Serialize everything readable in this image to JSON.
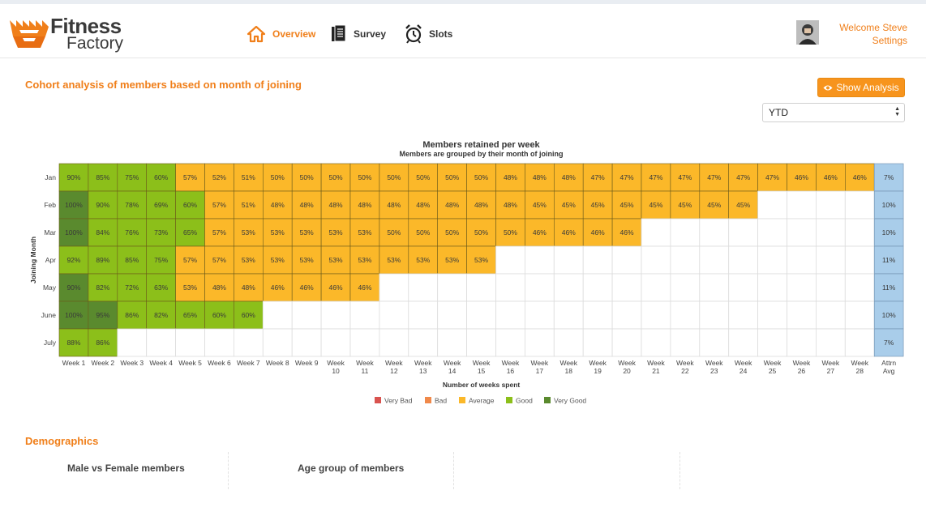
{
  "brand": {
    "line1": "Fitness",
    "line2": "Factory"
  },
  "nav": [
    {
      "label": "Overview",
      "icon": "home-icon"
    },
    {
      "label": "Survey",
      "icon": "document-icon"
    },
    {
      "label": "Slots",
      "icon": "alarm-clock-icon"
    }
  ],
  "user": {
    "welcome": "Welcome Steve",
    "settings": "Settings"
  },
  "cohort": {
    "title": "Cohort analysis of members based on month of joining",
    "show_button": "Show Analysis",
    "period_select": "YTD"
  },
  "colors": {
    "very_bad": "#d9534f",
    "bad": "#f0894a",
    "average": "#fbb829",
    "good": "#8cbf1a",
    "very_good": "#5a8a2e",
    "avg_column": "#a9cdea",
    "accent": "#f07f1a"
  },
  "chart_data": {
    "type": "heatmap",
    "title": "Members retained per week",
    "subtitle": "Members are grouped by their month of joining",
    "xlabel": "Number of weeks spent",
    "ylabel": "Joining Month",
    "rows": [
      "Jan",
      "Feb",
      "Mar",
      "Apr",
      "May",
      "June",
      "July"
    ],
    "columns": [
      [
        "Week 1"
      ],
      [
        "Week 2"
      ],
      [
        "Week 3"
      ],
      [
        "Week 4"
      ],
      [
        "Week 5"
      ],
      [
        "Week 6"
      ],
      [
        "Week 7"
      ],
      [
        "Week 8"
      ],
      [
        "Week 9"
      ],
      [
        "Week",
        "10"
      ],
      [
        "Week",
        "11"
      ],
      [
        "Week",
        "12"
      ],
      [
        "Week",
        "13"
      ],
      [
        "Week",
        "14"
      ],
      [
        "Week",
        "15"
      ],
      [
        "Week",
        "16"
      ],
      [
        "Week",
        "17"
      ],
      [
        "Week",
        "18"
      ],
      [
        "Week",
        "19"
      ],
      [
        "Week",
        "20"
      ],
      [
        "Week",
        "21"
      ],
      [
        "Week",
        "22"
      ],
      [
        "Week",
        "23"
      ],
      [
        "Week",
        "24"
      ],
      [
        "Week",
        "25"
      ],
      [
        "Week",
        "26"
      ],
      [
        "Week",
        "27"
      ],
      [
        "Week",
        "28"
      ],
      [
        "Attrn",
        "Avg"
      ]
    ],
    "values": [
      [
        90,
        85,
        75,
        60,
        57,
        52,
        51,
        50,
        50,
        50,
        50,
        50,
        50,
        50,
        50,
        48,
        48,
        48,
        47,
        47,
        47,
        47,
        47,
        47,
        47,
        46,
        46,
        46
      ],
      [
        100,
        90,
        78,
        69,
        60,
        57,
        51,
        48,
        48,
        48,
        48,
        48,
        48,
        48,
        48,
        48,
        45,
        45,
        45,
        45,
        45,
        45,
        45,
        45
      ],
      [
        100,
        84,
        76,
        73,
        65,
        57,
        53,
        53,
        53,
        53,
        53,
        50,
        50,
        50,
        50,
        50,
        46,
        46,
        46,
        46
      ],
      [
        92,
        89,
        85,
        75,
        57,
        57,
        53,
        53,
        53,
        53,
        53,
        53,
        53,
        53,
        53
      ],
      [
        90,
        82,
        72,
        63,
        53,
        48,
        48,
        46,
        46,
        46,
        46
      ],
      [
        100,
        95,
        86,
        82,
        65,
        60,
        60
      ],
      [
        88,
        86
      ]
    ],
    "attrition_avg": [
      "7%",
      "10%",
      "10%",
      "11%",
      "11%",
      "10%",
      "7%"
    ],
    "cell_categories": [
      [
        "good",
        "good",
        "good",
        "good",
        "average",
        "average",
        "average",
        "average",
        "average",
        "average",
        "average",
        "average",
        "average",
        "average",
        "average",
        "average",
        "average",
        "average",
        "average",
        "average",
        "average",
        "average",
        "average",
        "average",
        "average",
        "average",
        "average",
        "average"
      ],
      [
        "very_good",
        "good",
        "good",
        "good",
        "good",
        "average",
        "average",
        "average",
        "average",
        "average",
        "average",
        "average",
        "average",
        "average",
        "average",
        "average",
        "average",
        "average",
        "average",
        "average",
        "average",
        "average",
        "average",
        "average"
      ],
      [
        "very_good",
        "good",
        "good",
        "good",
        "good",
        "average",
        "average",
        "average",
        "average",
        "average",
        "average",
        "average",
        "average",
        "average",
        "average",
        "average",
        "average",
        "average",
        "average",
        "average"
      ],
      [
        "good",
        "good",
        "good",
        "good",
        "average",
        "average",
        "average",
        "average",
        "average",
        "average",
        "average",
        "average",
        "average",
        "average",
        "average"
      ],
      [
        "very_good",
        "good",
        "good",
        "good",
        "average",
        "average",
        "average",
        "average",
        "average",
        "average",
        "average"
      ],
      [
        "very_good",
        "very_good",
        "good",
        "good",
        "good",
        "good",
        "good"
      ],
      [
        "good",
        "good"
      ]
    ],
    "legend": [
      {
        "label": "Very Bad",
        "color": "#d9534f"
      },
      {
        "label": "Bad",
        "color": "#f0894a"
      },
      {
        "label": "Average",
        "color": "#fbb829"
      },
      {
        "label": "Good",
        "color": "#8cbf1a"
      },
      {
        "label": "Very Good",
        "color": "#5a8a2e"
      }
    ],
    "legend_position": "bottom-center"
  },
  "demographics": {
    "title": "Demographics",
    "panels": [
      "Male vs Female members",
      "Age group of members"
    ]
  }
}
